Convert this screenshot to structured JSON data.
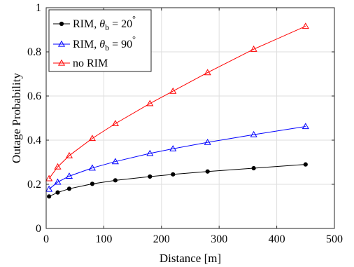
{
  "chart_data": {
    "type": "line",
    "title": "",
    "xlabel": "Distance [m]",
    "ylabel": "Outage Probability",
    "xlim": [
      0,
      500
    ],
    "ylim": [
      0,
      1
    ],
    "xticks": [
      0,
      100,
      200,
      300,
      400,
      500
    ],
    "yticks": [
      0,
      0.2,
      0.4,
      0.6,
      0.8,
      1
    ],
    "xtick_labels": [
      "0",
      "100",
      "200",
      "300",
      "400",
      "500"
    ],
    "ytick_labels": [
      "0",
      "0.2",
      "0.4",
      "0.6",
      "0.8",
      "1"
    ],
    "grid": true,
    "legend_position": "top-left",
    "series": [
      {
        "name": "RIM, θb = 20°",
        "legend": {
          "prefix": "RIM, ",
          "sym": "θ",
          "sub": "b",
          "mid": " = 20",
          "sup": "°"
        },
        "color": "#000000",
        "marker": "dot",
        "x": [
          5,
          20,
          40,
          80,
          120,
          180,
          220,
          280,
          360,
          450
        ],
        "y": [
          0.145,
          0.163,
          0.18,
          0.202,
          0.218,
          0.235,
          0.245,
          0.258,
          0.273,
          0.29
        ]
      },
      {
        "name": "RIM, θb = 90°",
        "legend": {
          "prefix": "RIM, ",
          "sym": "θ",
          "sub": "b",
          "mid": " = 90",
          "sup": "°"
        },
        "color": "#0000ff",
        "marker": "triangle",
        "x": [
          5,
          20,
          40,
          80,
          120,
          180,
          220,
          280,
          360,
          450
        ],
        "y": [
          0.178,
          0.21,
          0.237,
          0.274,
          0.303,
          0.34,
          0.361,
          0.39,
          0.425,
          0.462
        ]
      },
      {
        "name": "no RIM",
        "legend": {
          "prefix": "no RIM"
        },
        "color": "#ff0000",
        "marker": "triangle",
        "x": [
          5,
          20,
          40,
          80,
          120,
          180,
          220,
          280,
          360,
          450
        ],
        "y": [
          0.226,
          0.279,
          0.33,
          0.408,
          0.475,
          0.566,
          0.622,
          0.706,
          0.812,
          0.916
        ]
      }
    ]
  }
}
